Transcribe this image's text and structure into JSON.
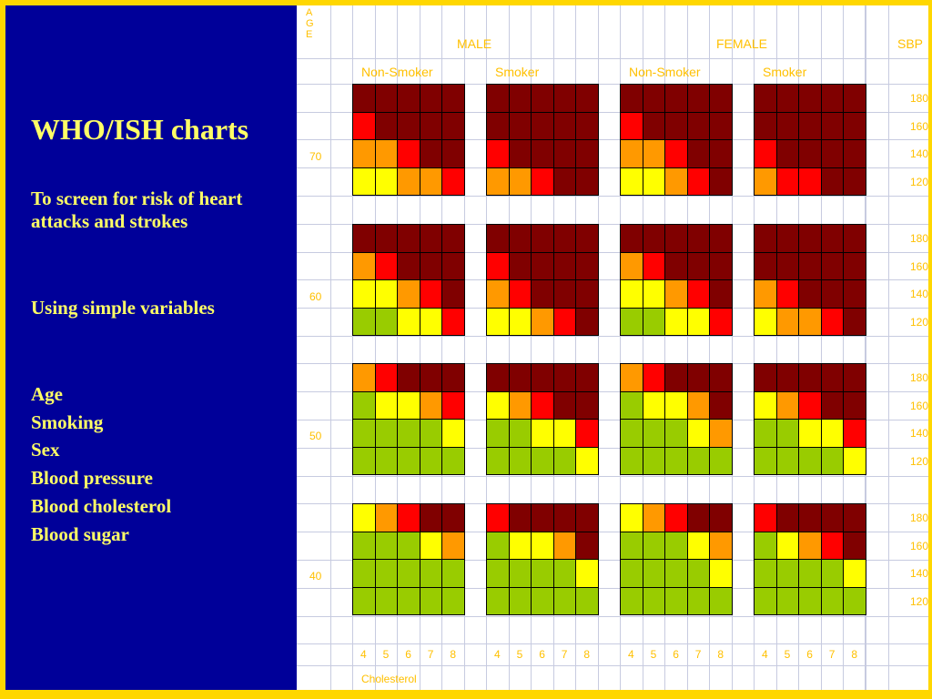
{
  "slide": {
    "title": "WHO/ISH charts",
    "subtitle": "To screen for  risk of heart attacks  and  strokes",
    "subheading": "Using simple variables",
    "variables": [
      "Age",
      "Smoking",
      "Sex",
      "Blood pressure",
      "Blood cholesterol",
      "Blood sugar"
    ]
  },
  "chart": {
    "age_label": "AGE",
    "male_label": "MALE",
    "female_label": "FEMALE",
    "sbp_label": "SBP",
    "group_labels": [
      "Non-Smoker",
      "Smoker",
      "Non-Smoker",
      "Smoker"
    ],
    "cholesterol_label": "Cholesterol",
    "cholesterol_values": [
      "4",
      "5",
      "6",
      "7",
      "8"
    ],
    "sbp_values": [
      "180",
      "160",
      "140",
      "120"
    ],
    "ages": [
      "70",
      "60",
      "50",
      "40"
    ],
    "colors": {
      "G": "#99cc00",
      "Y": "#ffff00",
      "O": "#ff9900",
      "R": "#ff0000",
      "D": "#800000",
      "border": "#000000",
      "text": "#ffc000",
      "left_panel": "#000099",
      "frame": "#ffd700"
    },
    "blocks": [
      [
        [
          "DDDDD",
          "RDDDD",
          "OORDD",
          "YYOOR"
        ],
        [
          "DDDDD",
          "DDDDD",
          "RDDDD",
          "OORDD"
        ],
        [
          "DDDDD",
          "RDDDD",
          "OORDD",
          "YYORD"
        ],
        [
          "DDDDD",
          "DDDDD",
          "RDDDD",
          "ORRDD"
        ]
      ],
      [
        [
          "DDDDD",
          "ORDDD",
          "YYORD",
          "GGYYR"
        ],
        [
          "DDDDD",
          "RDDDD",
          "ORDDD",
          "YYORD"
        ],
        [
          "DDDDD",
          "ORDDD",
          "YYORD",
          "GGYYR"
        ],
        [
          "DDDDD",
          "DDDDD",
          "ORDDD",
          "YOORD"
        ]
      ],
      [
        [
          "ORDDD",
          "GYYOR",
          "GGGGY",
          "GGGGG"
        ],
        [
          "DDDDD",
          "YORDD",
          "GGYYR",
          "GGGGY"
        ],
        [
          "ORDDD",
          "GYYOD",
          "GGGYO",
          "GGGGG"
        ],
        [
          "DDDDD",
          "YORDD",
          "GGYYR",
          "GGGGY"
        ]
      ],
      [
        [
          "YORDD",
          "GGGYO",
          "GGGGG",
          "GGGGG"
        ],
        [
          "RDDDD",
          "GYYOD",
          "GGGGY",
          "GGGGG"
        ],
        [
          "YORDD",
          "GGGYO",
          "GGGGY",
          "GGGGG"
        ],
        [
          "RDDDD",
          "GYORD",
          "GGGGY",
          "GGGGG"
        ]
      ]
    ]
  }
}
